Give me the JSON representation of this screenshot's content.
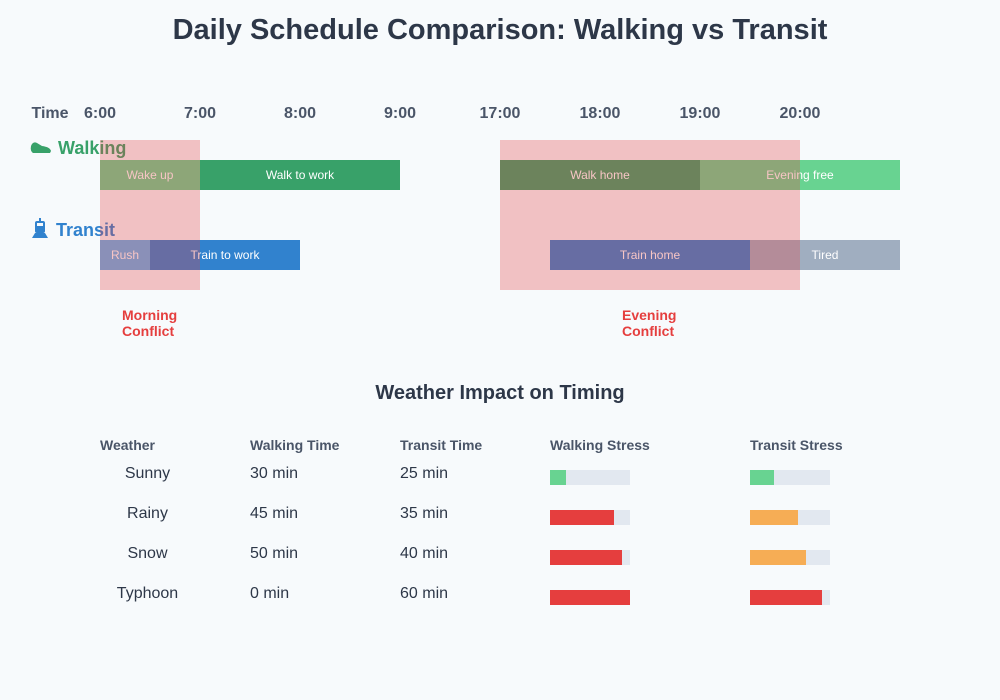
{
  "title": "Daily Schedule Comparison: Walking vs Transit",
  "timeline": {
    "time_label": "Time",
    "ticks": [
      "6:00",
      "7:00",
      "8:00",
      "9:00",
      "17:00",
      "18:00",
      "19:00",
      "20:00"
    ],
    "rows": [
      {
        "label": "Walking",
        "icon": "shoe-icon",
        "color": "#38a169",
        "segments": [
          {
            "label": "Wake up",
            "start": "6:00",
            "end": "7:00",
            "color": "#68d391"
          },
          {
            "label": "Walk to work",
            "start": "7:00",
            "end": "9:00",
            "color": "#38a169"
          },
          {
            "label": "Walk home",
            "start": "17:00",
            "end": "19:00",
            "color": "#38a169"
          },
          {
            "label": "Evening free",
            "start": "19:00",
            "end": "21:00",
            "color": "#68d391"
          }
        ]
      },
      {
        "label": "Transit",
        "icon": "train-icon",
        "color": "#3182ce",
        "segments": [
          {
            "label": "Rush",
            "start": "6:00",
            "end": "6:30",
            "color": "#63b3ed"
          },
          {
            "label": "Train to work",
            "start": "6:30",
            "end": "8:00",
            "color": "#3182ce"
          },
          {
            "label": "Train home",
            "start": "17:30",
            "end": "19:30",
            "color": "#3182ce"
          },
          {
            "label": "Tired",
            "start": "19:30",
            "end": "21:00",
            "color": "#a0aec0"
          }
        ]
      }
    ],
    "conflicts": [
      {
        "label": "Morning Conflict",
        "start": "6:00",
        "end": "7:00"
      },
      {
        "label": "Evening Conflict",
        "start": "17:00",
        "end": "20:00"
      }
    ]
  },
  "weather": {
    "title": "Weather Impact on Timing",
    "headers": [
      "Weather",
      "Walking Time",
      "Transit Time",
      "Walking Stress",
      "Transit Stress"
    ],
    "rows": [
      {
        "weather": "Sunny",
        "walking": "30 min",
        "transit": "25 min",
        "walk_stress": 20,
        "walk_color": "#68d391",
        "transit_stress": 30,
        "transit_color": "#68d391"
      },
      {
        "weather": "Rainy",
        "walking": "45 min",
        "transit": "35 min",
        "walk_stress": 80,
        "walk_color": "#e53e3e",
        "transit_stress": 60,
        "transit_color": "#f6ad55"
      },
      {
        "weather": "Snow",
        "walking": "50 min",
        "transit": "40 min",
        "walk_stress": 90,
        "walk_color": "#e53e3e",
        "transit_stress": 70,
        "transit_color": "#f6ad55"
      },
      {
        "weather": "Typhoon",
        "walking": "0 min",
        "transit": "60 min",
        "walk_stress": 100,
        "walk_color": "#e53e3e",
        "transit_stress": 90,
        "transit_color": "#e53e3e"
      }
    ]
  }
}
